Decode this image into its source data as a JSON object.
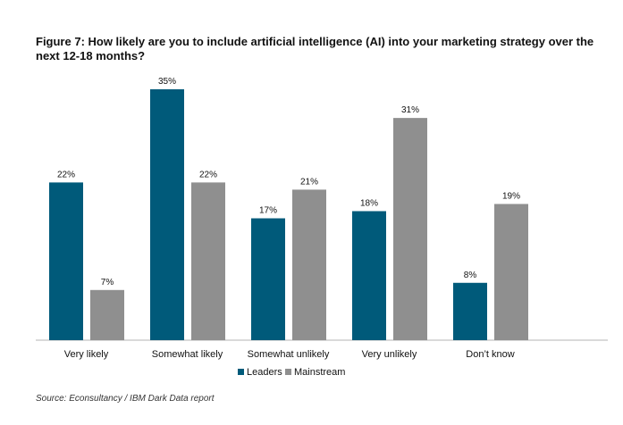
{
  "title": "Figure 7: How likely are you to include artificial intelligence (AI) into your marketing strategy over the next 12-18 months?",
  "source": "Source: Econsultancy / IBM Dark Data report",
  "colors": {
    "leaders": "#005a7a",
    "mainstream": "#8f8f8f",
    "axis": "#b5b5b5"
  },
  "chart_data": {
    "type": "bar",
    "title": "Figure 7: How likely are you to include artificial intelligence (AI) into your marketing strategy over the next 12-18 months?",
    "categories": [
      "Very likely",
      "Somewhat likely",
      "Somewhat unlikely",
      "Very unlikely",
      "Don’t know"
    ],
    "series": [
      {
        "name": "Leaders",
        "values": [
          22,
          35,
          17,
          18,
          8
        ],
        "labels": [
          "22%",
          "35%",
          "17%",
          "18%",
          "8%"
        ]
      },
      {
        "name": "Mainstream",
        "values": [
          7,
          22,
          21,
          31,
          19
        ],
        "labels": [
          "7%",
          "22%",
          "21%",
          "31%",
          "19%"
        ]
      }
    ],
    "ylim": [
      0,
      35
    ],
    "grid": false,
    "legend": "bottom-center"
  }
}
